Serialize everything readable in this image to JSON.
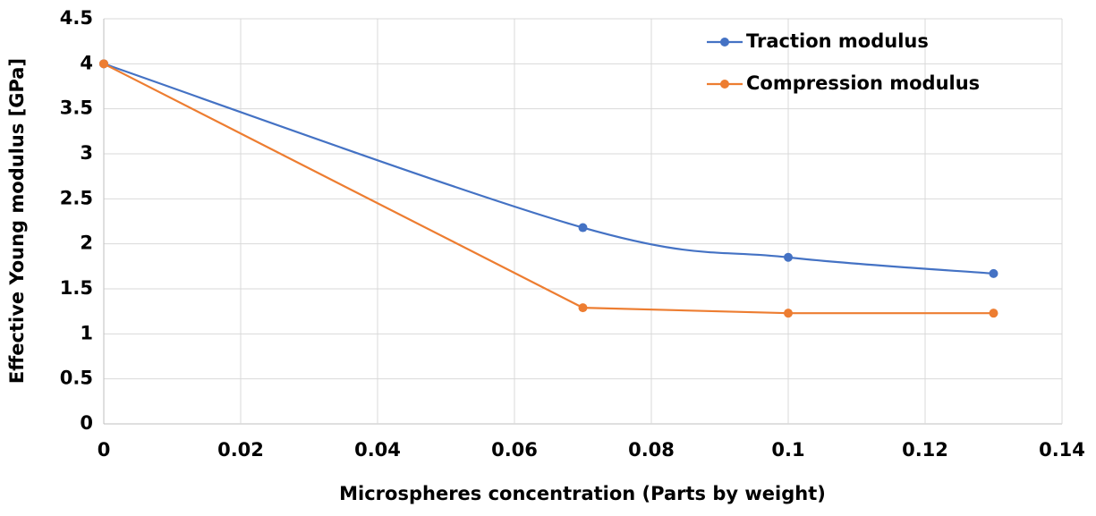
{
  "chart_data": {
    "type": "line",
    "x_label": "Microspheres concentration (Parts by weight)",
    "y_label": "Effective Young modulus [GPa]",
    "series": [
      {
        "name": "Traction modulus",
        "color": "#4472c4",
        "smooth": true,
        "x": [
          0,
          0.07,
          0.1,
          0.13
        ],
        "values": [
          4,
          2.18,
          1.85,
          1.67
        ]
      },
      {
        "name": "Compression modulus",
        "color": "#ed7d31",
        "smooth": false,
        "x": [
          0,
          0.07,
          0.1,
          0.13
        ],
        "values": [
          4,
          1.29,
          1.23,
          1.23
        ]
      }
    ],
    "xlim": [
      0,
      0.14
    ],
    "xticks": [
      0,
      0.02,
      0.04,
      0.06,
      0.08,
      0.1,
      0.12,
      0.14
    ],
    "ylim": [
      0,
      4.5
    ],
    "yticks": [
      0,
      0.5,
      1,
      1.5,
      2,
      2.5,
      3,
      3.5,
      4,
      4.5
    ],
    "grid": true,
    "legend": "upper right"
  }
}
